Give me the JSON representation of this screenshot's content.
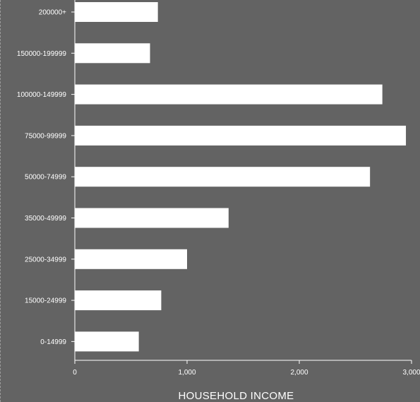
{
  "chart_data": {
    "type": "bar",
    "orientation": "horizontal",
    "categories": [
      "200000+",
      "150000-199999",
      "100000-149999",
      "75000-99999",
      "50000-74999",
      "35000-49999",
      "25000-34999",
      "15000-24999",
      "0-14999"
    ],
    "values": [
      740,
      670,
      2740,
      2950,
      2630,
      1370,
      1000,
      770,
      570
    ],
    "xlabel": "HOUSEHOLD INCOME",
    "xticks": [
      {
        "value": 0,
        "label": "0"
      },
      {
        "value": 1000,
        "label": "1,000"
      },
      {
        "value": 2000,
        "label": "2,000"
      },
      {
        "value": 3000,
        "label": "3,000"
      }
    ],
    "xlim": [
      0,
      3000
    ],
    "grid": false,
    "colors": {
      "bar": "#ffffff",
      "background": "#636363",
      "axis": "#ffffff"
    }
  }
}
